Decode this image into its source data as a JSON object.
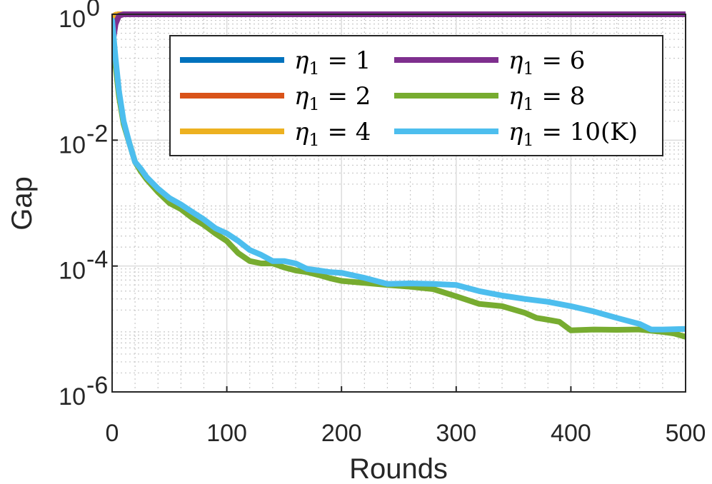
{
  "chart_data": {
    "type": "line",
    "xlabel": "Rounds",
    "ylabel": "Gap",
    "xlim": [
      0,
      500
    ],
    "ylim": [
      1e-06,
      1
    ],
    "yscale": "log",
    "grid": true,
    "minor_grid": true,
    "legend_position": "top-right",
    "legend_columns": 2,
    "x_ticks": [
      0,
      100,
      200,
      300,
      400,
      500
    ],
    "x_tick_labels": [
      "0",
      "100",
      "200",
      "300",
      "400",
      "500"
    ],
    "y_ticks": [
      1e-06,
      0.0001,
      0.01,
      1
    ],
    "y_tick_labels": [
      {
        "base": "10",
        "exp": "-6"
      },
      {
        "base": "10",
        "exp": "-4"
      },
      {
        "base": "10",
        "exp": "-2"
      },
      {
        "base": "10",
        "exp": "0"
      }
    ],
    "series": [
      {
        "name": "η₁ = 1",
        "label_main": "η",
        "label_sub": "1",
        "label_rest": " = 1",
        "color": "#0072BD",
        "x": [
          0,
          3,
          6,
          500
        ],
        "y": [
          0.9,
          0.98,
          1.0,
          1.0
        ]
      },
      {
        "name": "η₁ = 2",
        "label_main": "η",
        "label_sub": "1",
        "label_rest": " = 2",
        "color": "#D95319",
        "x": [
          0,
          3,
          6,
          500
        ],
        "y": [
          0.9,
          0.98,
          1.0,
          1.0
        ]
      },
      {
        "name": "η₁ = 4",
        "label_main": "η",
        "label_sub": "1",
        "label_rest": " = 4",
        "color": "#EDB120",
        "x": [
          0,
          3,
          6,
          500
        ],
        "y": [
          0.9,
          0.98,
          1.0,
          1.0
        ]
      },
      {
        "name": "η₁ = 6",
        "label_main": "η",
        "label_sub": "1",
        "label_rest": " = 6",
        "color": "#7E2F8E",
        "x": [
          0,
          3,
          6,
          10,
          500
        ],
        "y": [
          0.3,
          0.7,
          0.95,
          1.0,
          1.0
        ]
      },
      {
        "name": "η₁ = 8",
        "label_main": "η",
        "label_sub": "1",
        "label_rest": " = 8",
        "color": "#77AC30",
        "x": [
          0,
          3,
          6,
          10,
          15,
          20,
          25,
          30,
          40,
          50,
          60,
          70,
          80,
          90,
          100,
          110,
          120,
          130,
          140,
          150,
          160,
          170,
          180,
          190,
          200,
          220,
          240,
          260,
          280,
          300,
          320,
          340,
          360,
          370,
          380,
          390,
          400,
          420,
          440,
          460,
          480,
          490,
          500
        ],
        "y": [
          0.7,
          0.15,
          0.05,
          0.018,
          0.009,
          0.0045,
          0.0032,
          0.0024,
          0.0015,
          0.001,
          0.0008,
          0.00058,
          0.00045,
          0.00033,
          0.00025,
          0.00016,
          0.00012,
          0.00011,
          0.00011,
          9.5e-05,
          8.5e-05,
          8e-05,
          7.2e-05,
          6.4e-05,
          5.8e-05,
          5.4e-05,
          5e-05,
          4.7e-05,
          4.3e-05,
          3.3e-05,
          2.5e-05,
          2.3e-05,
          1.8e-05,
          1.5e-05,
          1.4e-05,
          1.3e-05,
          9.5e-06,
          9.8e-06,
          9.7e-06,
          9.8e-06,
          9e-06,
          8.5e-06,
          7.5e-06
        ]
      },
      {
        "name": "η₁ = 10(K)",
        "label_main": "η",
        "label_sub": "1",
        "label_rest": " = 10(K)",
        "color": "#4DBEEE",
        "x": [
          0,
          3,
          6,
          10,
          15,
          20,
          25,
          30,
          40,
          50,
          60,
          70,
          80,
          90,
          100,
          110,
          120,
          130,
          140,
          150,
          160,
          170,
          180,
          190,
          200,
          220,
          240,
          260,
          280,
          300,
          320,
          340,
          360,
          380,
          400,
          420,
          440,
          460,
          470,
          480,
          500
        ],
        "y": [
          0.8,
          0.2,
          0.06,
          0.02,
          0.009,
          0.0045,
          0.0035,
          0.0026,
          0.0017,
          0.0012,
          0.00095,
          0.00072,
          0.00055,
          0.0004,
          0.00033,
          0.00025,
          0.00018,
          0.00015,
          0.00012,
          0.00012,
          0.00011,
          9e-05,
          8.5e-05,
          8e-05,
          7.8e-05,
          6.5e-05,
          5.2e-05,
          5.3e-05,
          5.2e-05,
          5e-05,
          4e-05,
          3.4e-05,
          3e-05,
          2.7e-05,
          2.3e-05,
          1.9e-05,
          1.5e-05,
          1.2e-05,
          9.8e-06,
          9.8e-06,
          1e-05
        ]
      }
    ]
  }
}
